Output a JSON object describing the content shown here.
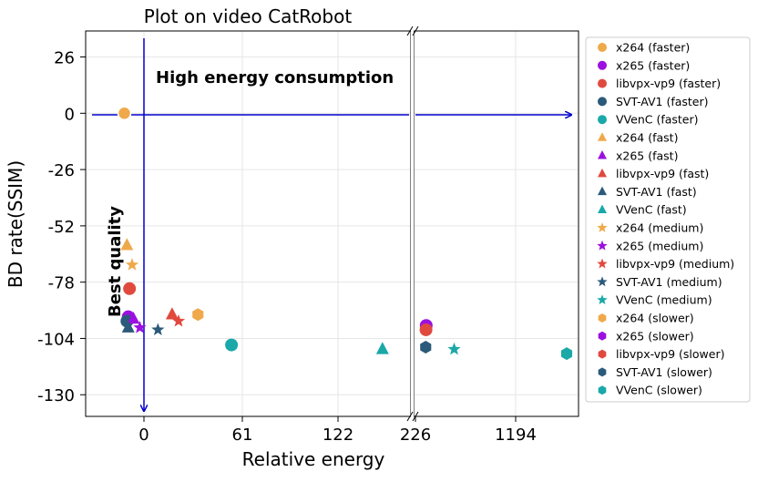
{
  "chart_data": {
    "type": "scatter",
    "title": "Plot on video CatRobot",
    "xlabel": "Relative energy",
    "ylabel": "BD rate(SSIM)",
    "x_axis": "broken",
    "x_ticks_left": [
      "0",
      "61",
      "122",
      "226"
    ],
    "x_ticks_right": [
      "1194"
    ],
    "y_ticks": [
      26,
      0,
      -26,
      -52,
      -78,
      -104,
      -130
    ],
    "ylim": [
      -140,
      38
    ],
    "grid": true,
    "legend_position": "right",
    "annotations": {
      "high_energy": "High energy consumption",
      "best_quality": "Best quality"
    },
    "colors": {
      "x264": "#f0a94a",
      "x265": "#9b10e0",
      "libvpx-vp9": "#e04a3e",
      "SVT-AV1": "#2b5a7a",
      "VVenC": "#1aa8a8",
      "arrow": "#0000cc"
    },
    "series": [
      {
        "name": "x264 (faster)",
        "marker": "circle",
        "color": "#f0a94a",
        "points": [
          {
            "x": 0,
            "y": 0
          }
        ]
      },
      {
        "name": "x265 (faster)",
        "marker": "circle",
        "color": "#9b10e0",
        "points": [
          {
            "x": 3,
            "y": -94
          },
          {
            "x": 330,
            "y": -98
          }
        ]
      },
      {
        "name": "libvpx-vp9 (faster)",
        "marker": "circle",
        "color": "#e04a3e",
        "points": [
          {
            "x": 4,
            "y": -81
          },
          {
            "x": 328,
            "y": -100
          }
        ]
      },
      {
        "name": "SVT-AV1 (faster)",
        "marker": "circle",
        "color": "#2b5a7a",
        "points": [
          {
            "x": 2,
            "y": -96
          }
        ]
      },
      {
        "name": "VVenC (faster)",
        "marker": "circle",
        "color": "#1aa8a8",
        "points": [
          {
            "x": 83,
            "y": -107
          }
        ]
      },
      {
        "name": "x264 (fast)",
        "marker": "triangle",
        "color": "#f0a94a",
        "points": [
          {
            "x": 2,
            "y": -61
          }
        ]
      },
      {
        "name": "x265 (fast)",
        "marker": "triangle",
        "color": "#9b10e0",
        "points": [
          {
            "x": 7,
            "y": -95
          }
        ]
      },
      {
        "name": "libvpx-vp9 (fast)",
        "marker": "triangle",
        "color": "#e04a3e",
        "points": [
          {
            "x": 37,
            "y": -93
          }
        ]
      },
      {
        "name": "SVT-AV1 (fast)",
        "marker": "triangle",
        "color": "#2b5a7a",
        "points": [
          {
            "x": 3,
            "y": -99
          }
        ]
      },
      {
        "name": "VVenC (fast)",
        "marker": "triangle",
        "color": "#1aa8a8",
        "points": [
          {
            "x": 200,
            "y": -109
          }
        ]
      },
      {
        "name": "x264 (medium)",
        "marker": "star",
        "color": "#f0a94a",
        "points": [
          {
            "x": 6,
            "y": -70
          }
        ]
      },
      {
        "name": "x265 (medium)",
        "marker": "star",
        "color": "#9b10e0",
        "points": [
          {
            "x": 12,
            "y": -99
          }
        ]
      },
      {
        "name": "libvpx-vp9 (medium)",
        "marker": "star",
        "color": "#e04a3e",
        "points": [
          {
            "x": 42,
            "y": -96
          }
        ]
      },
      {
        "name": "SVT-AV1 (medium)",
        "marker": "star",
        "color": "#2b5a7a",
        "points": [
          {
            "x": 26,
            "y": -100
          }
        ]
      },
      {
        "name": "VVenC (medium)",
        "marker": "star",
        "color": "#1aa8a8",
        "points": [
          {
            "x": 600,
            "y": -109
          }
        ]
      },
      {
        "name": "x264 (slower)",
        "marker": "hexagon",
        "color": "#f0a94a",
        "points": [
          {
            "x": 57,
            "y": -93
          }
        ]
      },
      {
        "name": "x265 (slower)",
        "marker": "hexagon",
        "color": "#9b10e0",
        "points": []
      },
      {
        "name": "libvpx-vp9 (slower)",
        "marker": "hexagon",
        "color": "#e04a3e",
        "points": []
      },
      {
        "name": "SVT-AV1 (slower)",
        "marker": "hexagon",
        "color": "#2b5a7a",
        "points": [
          {
            "x": 325,
            "y": -108
          }
        ]
      },
      {
        "name": "VVenC (slower)",
        "marker": "hexagon",
        "color": "#1aa8a8",
        "points": [
          {
            "x": 1410,
            "y": -111
          }
        ]
      }
    ]
  }
}
